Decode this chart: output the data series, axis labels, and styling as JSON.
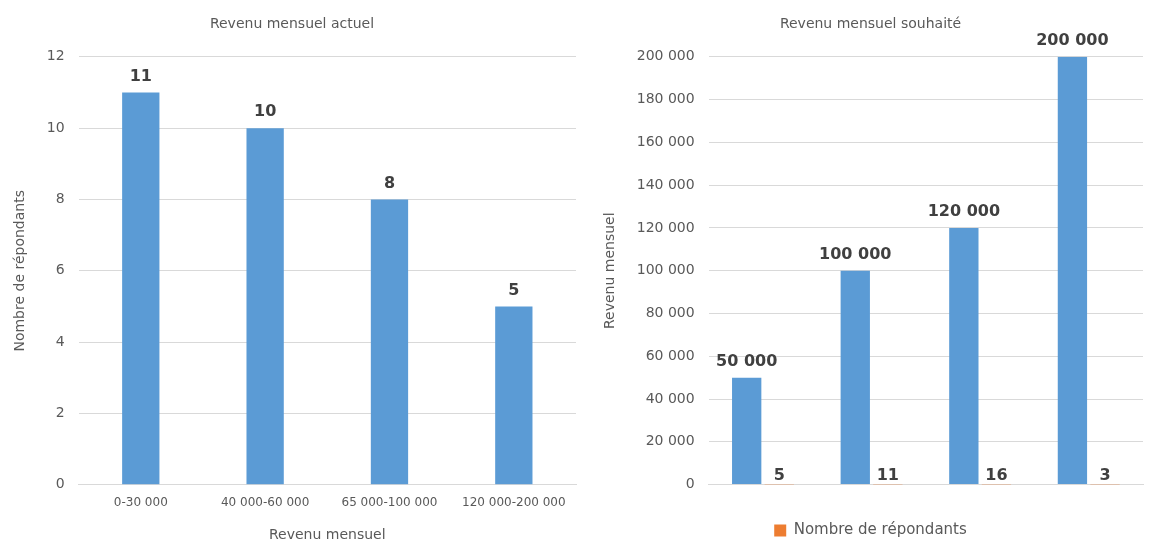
{
  "chart_data": [
    {
      "type": "bar",
      "title": "Revenu mensuel actuel",
      "xlabel": "Revenu mensuel",
      "ylabel": "Nombre de répondants",
      "categories": [
        "0-30 000",
        "40 000-60 000",
        "65 000-100 000",
        "120 000-200 000"
      ],
      "values": [
        11,
        10,
        8,
        5
      ],
      "color": "#5b9bd5",
      "ylim": [
        0,
        12
      ],
      "yticks": [
        0,
        2,
        4,
        6,
        8,
        10,
        12
      ],
      "grid": "y",
      "data_labels": true,
      "legend": false
    },
    {
      "type": "bar",
      "title": "Revenu mensuel souhaité",
      "ylabel": "Revenu mensuel",
      "categories": [
        null,
        null,
        null,
        null
      ],
      "series": [
        {
          "color": "#5b9bd5",
          "values": [
            50000,
            100000,
            120000,
            200000
          ],
          "value_labels": [
            "50 000",
            "100 000",
            "120 000",
            "200 000"
          ]
        },
        {
          "name": "Nombre de répondants",
          "color": "#ed7d31",
          "values": [
            5,
            11,
            16,
            3
          ],
          "value_labels": [
            "5",
            "11",
            "16",
            "3"
          ]
        }
      ],
      "ylim": [
        0,
        200000
      ],
      "yticks": [
        0,
        {
          "value": 20000,
          "label": "20 000"
        },
        {
          "value": 40000,
          "label": "40 000"
        },
        {
          "value": 60000,
          "label": "60 000"
        },
        {
          "value": 80000,
          "label": "80 000"
        },
        {
          "value": 100000,
          "label": "100 000"
        },
        {
          "value": 120000,
          "label": "120 000"
        },
        {
          "value": 140000,
          "label": "140 000"
        },
        {
          "value": 160000,
          "label": "160 000"
        },
        {
          "value": 180000,
          "label": "180 000"
        },
        {
          "value": 200000,
          "label": "200 000"
        }
      ],
      "grid": "y",
      "legend": "bottom"
    }
  ]
}
